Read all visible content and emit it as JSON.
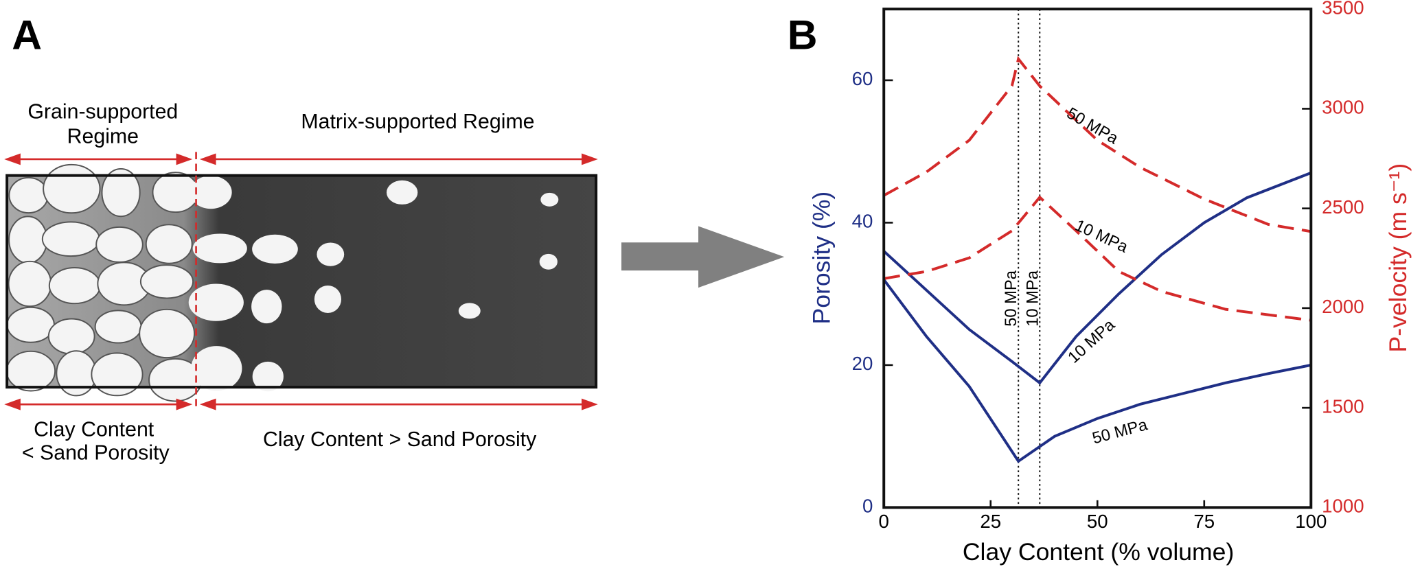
{
  "panel_a": {
    "label": "A",
    "top_left": [
      "Grain-supported",
      "Regime"
    ],
    "top_right": "Matrix-supported Regime",
    "bottom_left": [
      "Clay Content",
      "< Sand Porosity"
    ],
    "bottom_right": "Clay Content > Sand Porosity"
  },
  "chart_data": {
    "type": "line",
    "panel_label": "B",
    "xlabel": "Clay Content (% volume)",
    "ylabel": "Porosity (%)",
    "y2label": "P-velocity (m s⁻¹)",
    "xlim": [
      0,
      100
    ],
    "xticks": [
      0,
      25,
      50,
      75,
      100
    ],
    "ylim": [
      0,
      70
    ],
    "yticks": [
      0,
      20,
      40,
      60
    ],
    "y2lim": [
      1000,
      3500
    ],
    "y2ticks": [
      1000,
      1500,
      2000,
      2500,
      3000,
      3500
    ],
    "vlines": [
      {
        "value": 31.5,
        "label": "50 MPa"
      },
      {
        "value": 36.5,
        "label": "10 MPa"
      }
    ],
    "series": [
      {
        "name": "10 MPa",
        "color": "#1f2f86",
        "style": "solid",
        "axis": "y",
        "x": [
          0,
          10,
          20,
          30,
          36.5,
          45,
          55,
          65,
          75,
          85,
          100
        ],
        "values": [
          36,
          30.5,
          25,
          20.5,
          17.5,
          24,
          30,
          35.5,
          40,
          43.5,
          47
        ]
      },
      {
        "name": "50 MPa",
        "color": "#1f2f86",
        "style": "solid",
        "axis": "y",
        "x": [
          0,
          10,
          20,
          31.5,
          40,
          50,
          60,
          70,
          80,
          90,
          100
        ],
        "values": [
          32,
          24,
          17,
          6.5,
          10,
          12.5,
          14.5,
          16,
          17.5,
          18.8,
          20
        ]
      },
      {
        "name": "50 MPa",
        "color": "#d42a2a",
        "style": "dashed",
        "axis": "y2",
        "x": [
          0,
          10,
          20,
          30,
          31.5,
          36.5,
          50,
          60,
          75,
          90,
          100
        ],
        "values": [
          2565,
          2683,
          2842,
          3115,
          3250,
          3114,
          2842,
          2706,
          2547,
          2420,
          2384
        ]
      },
      {
        "name": "10 MPa",
        "color": "#d42a2a",
        "style": "dashed",
        "axis": "y2",
        "x": [
          0,
          10,
          20,
          30,
          36.5,
          45,
          55,
          65,
          80,
          100
        ],
        "values": [
          2148,
          2184,
          2252,
          2388,
          2556,
          2388,
          2184,
          2084,
          1994,
          1939
        ]
      }
    ]
  }
}
